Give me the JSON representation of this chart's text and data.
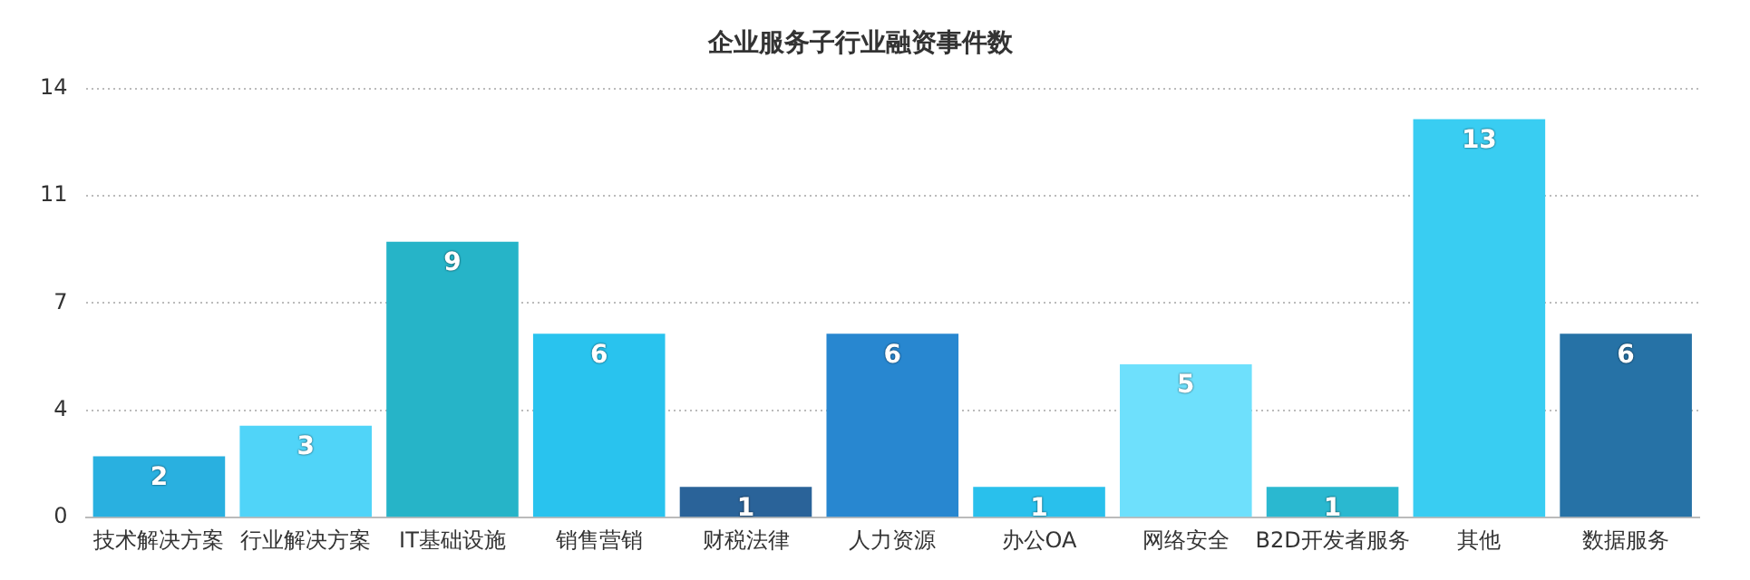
{
  "chart_data": {
    "type": "bar",
    "title": "企业服务子行业融资事件数",
    "categories": [
      "技术解决方案",
      "行业解决方案",
      "IT基础设施",
      "销售营销",
      "财税法律",
      "人力资源",
      "办公OA",
      "网络安全",
      "B2D开发者服务",
      "其他",
      "数据服务"
    ],
    "values": [
      2,
      3,
      9,
      6,
      1,
      6,
      1,
      5,
      1,
      13,
      6
    ],
    "colors": [
      "#29b0e0",
      "#50d4f8",
      "#26b4c8",
      "#29c3ee",
      "#2a6399",
      "#2887d0",
      "#29c0ec",
      "#6ee0fc",
      "#2ab8d0",
      "#39cdf2",
      "#2672a6"
    ],
    "ylim": [
      0,
      14
    ],
    "yticks": [
      0,
      {
        "value": 3.5,
        "label": "4"
      },
      7,
      {
        "value": 10.5,
        "label": "11"
      },
      14
    ],
    "grid": "y",
    "data_labels": true,
    "legend": false
  }
}
